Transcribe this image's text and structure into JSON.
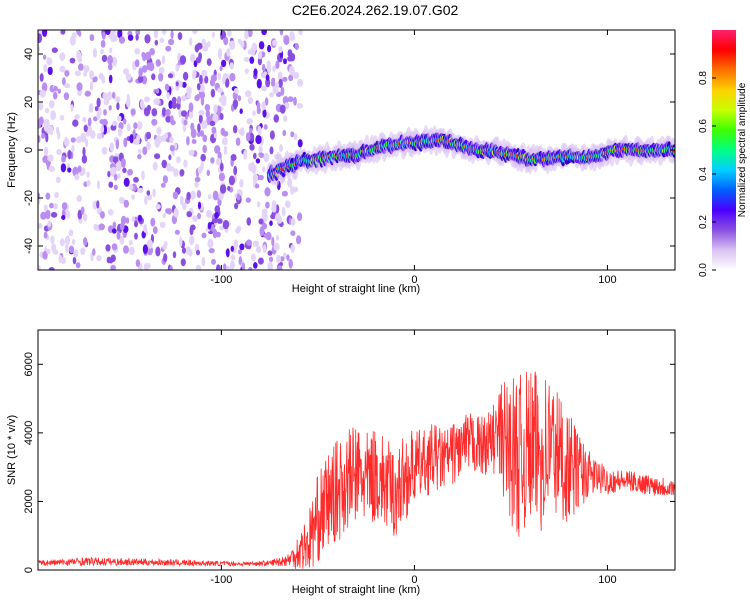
{
  "figure_title": "C2E6.2024.262.19.07.G02",
  "chart_data": [
    {
      "type": "heatmap",
      "title": "C2E6.2024.262.19.07.G02",
      "xlabel": "Height of straight line (km)",
      "ylabel": "Frequency (Hz)",
      "xlim": [
        -195,
        135
      ],
      "ylim": [
        -50,
        50
      ],
      "xticks": [
        -100,
        0,
        100
      ],
      "xtick_labels": [
        "-100",
        "0",
        "100"
      ],
      "yticks": [
        -40,
        -20,
        0,
        20,
        40
      ],
      "ytick_labels": [
        "-40",
        "-20",
        "0",
        "20",
        "40"
      ],
      "colorbar": {
        "label": "Normalized spectral amplitude",
        "range": [
          0.0,
          1.0
        ],
        "ticks": [
          0.0,
          0.2,
          0.4,
          0.6,
          0.8
        ],
        "tick_labels": [
          "0.0",
          "0.2",
          "0.4",
          "0.6",
          "0.8"
        ],
        "colormap": [
          "#ffffff",
          "#d9c2f2",
          "#8a4fe0",
          "#4b00ff",
          "#0060ff",
          "#00d0ff",
          "#00ff80",
          "#40ff00",
          "#c8ff00",
          "#ffd000",
          "#ff7000",
          "#ff0000",
          "#ff2070"
        ]
      },
      "noise_region_x": [
        -195,
        -65
      ],
      "signal_track": {
        "x": [
          -75,
          -60,
          -45,
          -30,
          -15,
          0,
          15,
          30,
          45,
          60,
          75,
          90,
          105,
          120,
          135
        ],
        "freq_hz": [
          -10,
          -5,
          -3,
          -2,
          2,
          3,
          4,
          0,
          -1,
          -4,
          -3,
          -3,
          0,
          0,
          0
        ]
      },
      "grid": false
    },
    {
      "type": "line",
      "xlabel": "Height of straight line (km)",
      "ylabel": "SNR (10 * v/v)",
      "xlim": [
        -195,
        135
      ],
      "ylim": [
        0,
        7000
      ],
      "xticks": [
        -100,
        0,
        100
      ],
      "xtick_labels": [
        "-100",
        "0",
        "100"
      ],
      "yticks": [
        0,
        2000,
        4000,
        6000
      ],
      "ytick_labels": [
        "0",
        "2000",
        "4000",
        "6000"
      ],
      "series": [
        {
          "color": "#ff2a2a",
          "x": [
            -195,
            -170,
            -140,
            -110,
            -90,
            -75,
            -65,
            -55,
            -50,
            -45,
            -40,
            -35,
            -30,
            -25,
            -20,
            -15,
            -10,
            -5,
            0,
            5,
            10,
            15,
            20,
            25,
            30,
            35,
            40,
            45,
            50,
            55,
            60,
            65,
            70,
            75,
            80,
            85,
            90,
            95,
            100,
            110,
            120,
            135
          ],
          "y": [
            200,
            250,
            230,
            200,
            180,
            200,
            300,
            800,
            1500,
            2000,
            2300,
            2600,
            2800,
            2600,
            2800,
            2500,
            2200,
            2700,
            3000,
            3100,
            3300,
            3200,
            3400,
            3600,
            3700,
            3600,
            3800,
            3900,
            3500,
            3300,
            3600,
            3400,
            3700,
            3300,
            3000,
            2900,
            2800,
            2700,
            2600,
            2600,
            2500,
            2400
          ],
          "spread": [
            80,
            120,
            100,
            80,
            60,
            80,
            200,
            900,
            1300,
            1400,
            1500,
            1500,
            1500,
            1400,
            1400,
            1400,
            1300,
            1300,
            1100,
            1000,
            1000,
            900,
            900,
            900,
            900,
            900,
            900,
            1600,
            2200,
            2400,
            2300,
            2400,
            2200,
            2000,
            1600,
            1200,
            700,
            500,
            400,
            300,
            300,
            300
          ]
        }
      ],
      "grid": false
    }
  ]
}
